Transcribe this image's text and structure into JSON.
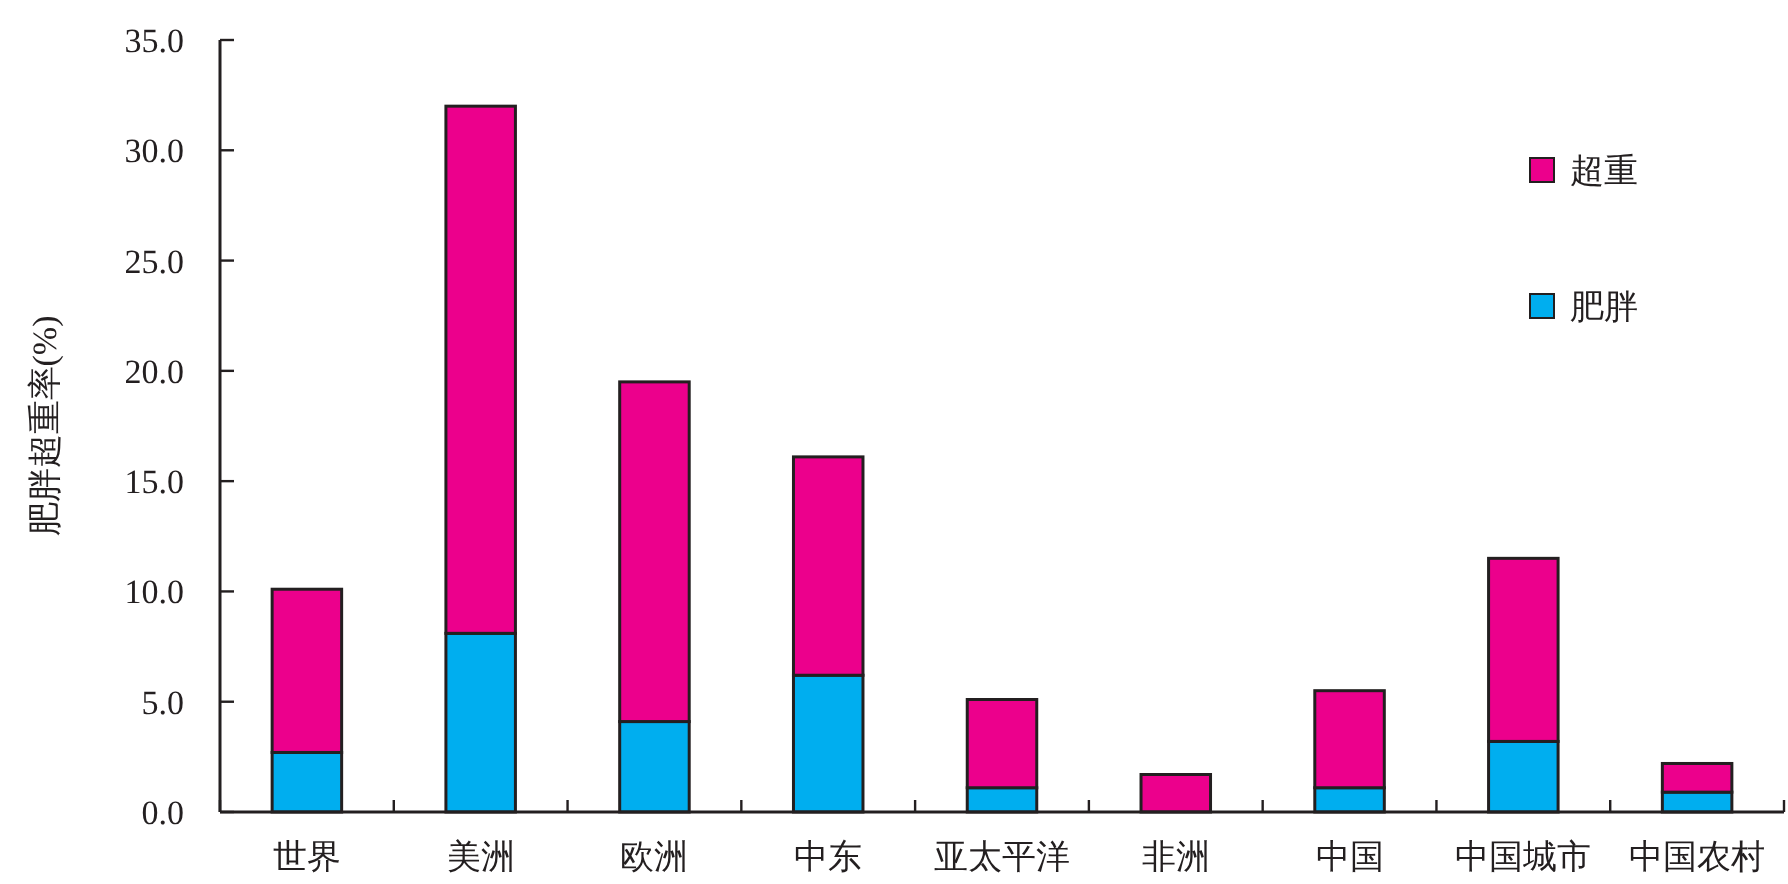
{
  "chart_data": {
    "type": "bar",
    "stacked": true,
    "ylabel": "肥胖超重率(%)",
    "legend": "top right",
    "categories": [
      "世界",
      "美洲",
      "欧洲",
      "中东",
      "亚太平洋",
      "非洲",
      "中国",
      "中国城市",
      "中国农村"
    ],
    "series": [
      {
        "name": "肥胖",
        "color": "#00aeef",
        "values": [
          2.7,
          8.1,
          4.1,
          6.2,
          1.1,
          0,
          1.1,
          3.2,
          0.9
        ]
      },
      {
        "name": "超重",
        "color": "#ec008c",
        "values": [
          7.4,
          23.9,
          15.4,
          9.9,
          4.0,
          1.7,
          4.4,
          8.3,
          1.3
        ]
      }
    ],
    "ylim": [
      0,
      35
    ],
    "yticks": [
      {
        "value": 0,
        "label": "0.0"
      },
      {
        "value": 5,
        "label": "5.0"
      },
      {
        "value": 10,
        "label": "10.0"
      },
      {
        "value": 15,
        "label": "15.0"
      },
      {
        "value": 20,
        "label": "20.0"
      },
      {
        "value": 25,
        "label": "25.0"
      },
      {
        "value": 30,
        "label": "30.0"
      },
      {
        "value": 35,
        "label": "35.0"
      }
    ]
  }
}
